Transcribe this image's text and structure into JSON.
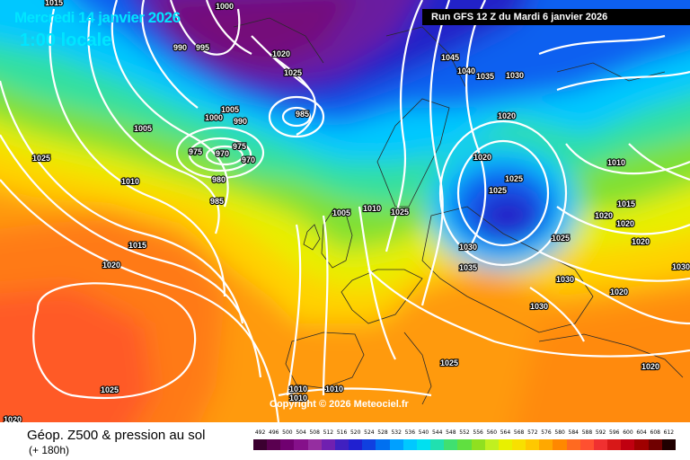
{
  "header": {
    "date_text": "Mercredi 14 janvier 2026",
    "local_time": "1:00 locale",
    "run_text": "Run GFS 12 Z du Mardi 6 janvier 2026"
  },
  "copyright": "Copyright © 2026 Meteociel.fr",
  "legend": {
    "title": "Géop. Z500 & pression au sol",
    "subtitle": "(+ 180h)",
    "scale_values": [
      "492",
      "496",
      "500",
      "504",
      "508",
      "512",
      "516",
      "520",
      "524",
      "528",
      "532",
      "536",
      "540",
      "544",
      "548",
      "552",
      "556",
      "560",
      "564",
      "568",
      "572",
      "576",
      "580",
      "584",
      "588",
      "592",
      "596",
      "600",
      "604",
      "608",
      "612"
    ],
    "scale_colors": [
      "#3b0030",
      "#5a0050",
      "#700070",
      "#85108a",
      "#952ea0",
      "#7020b0",
      "#4020c0",
      "#2020d0",
      "#1040e0",
      "#0070f0",
      "#00a0ff",
      "#00c8ff",
      "#00e0f0",
      "#20e0b0",
      "#40e070",
      "#60e040",
      "#90e020",
      "#c0f020",
      "#e8f000",
      "#f8e000",
      "#ffc800",
      "#ffa800",
      "#ff8800",
      "#ff6a20",
      "#ff5030",
      "#f03030",
      "#d81818",
      "#c00010",
      "#a00000",
      "#700000",
      "#200000"
    ]
  },
  "isobar_labels": [
    {
      "text": "1015"
    },
    {
      "text": "1000"
    },
    {
      "text": "990"
    },
    {
      "text": "995"
    },
    {
      "text": "1020"
    },
    {
      "text": "1025"
    },
    {
      "text": "1005"
    },
    {
      "text": "1000"
    },
    {
      "text": "990"
    },
    {
      "text": "985"
    },
    {
      "text": "975"
    },
    {
      "text": "970"
    },
    {
      "text": "975"
    },
    {
      "text": "970"
    },
    {
      "text": "980"
    },
    {
      "text": "985"
    },
    {
      "text": "1005"
    },
    {
      "text": "1025"
    },
    {
      "text": "1010"
    },
    {
      "text": "1015"
    },
    {
      "text": "1020"
    },
    {
      "text": "1005"
    },
    {
      "text": "1010"
    },
    {
      "text": "1025"
    },
    {
      "text": "1045"
    },
    {
      "text": "1040"
    },
    {
      "text": "1035"
    },
    {
      "text": "1030"
    },
    {
      "text": "1020"
    },
    {
      "text": "1020"
    },
    {
      "text": "1025"
    },
    {
      "text": "1025"
    },
    {
      "text": "1010"
    },
    {
      "text": "1015"
    },
    {
      "text": "1020"
    },
    {
      "text": "1020"
    },
    {
      "text": "1020"
    },
    {
      "text": "1030"
    },
    {
      "text": "1035"
    },
    {
      "text": "1025"
    },
    {
      "text": "1030"
    },
    {
      "text": "1030"
    },
    {
      "text": "1020"
    },
    {
      "text": "1025"
    },
    {
      "text": "1020"
    },
    {
      "text": "1025"
    },
    {
      "text": "1010"
    },
    {
      "text": "1010"
    },
    {
      "text": "1010"
    },
    {
      "text": "1020"
    },
    {
      "text": "1030"
    }
  ]
}
